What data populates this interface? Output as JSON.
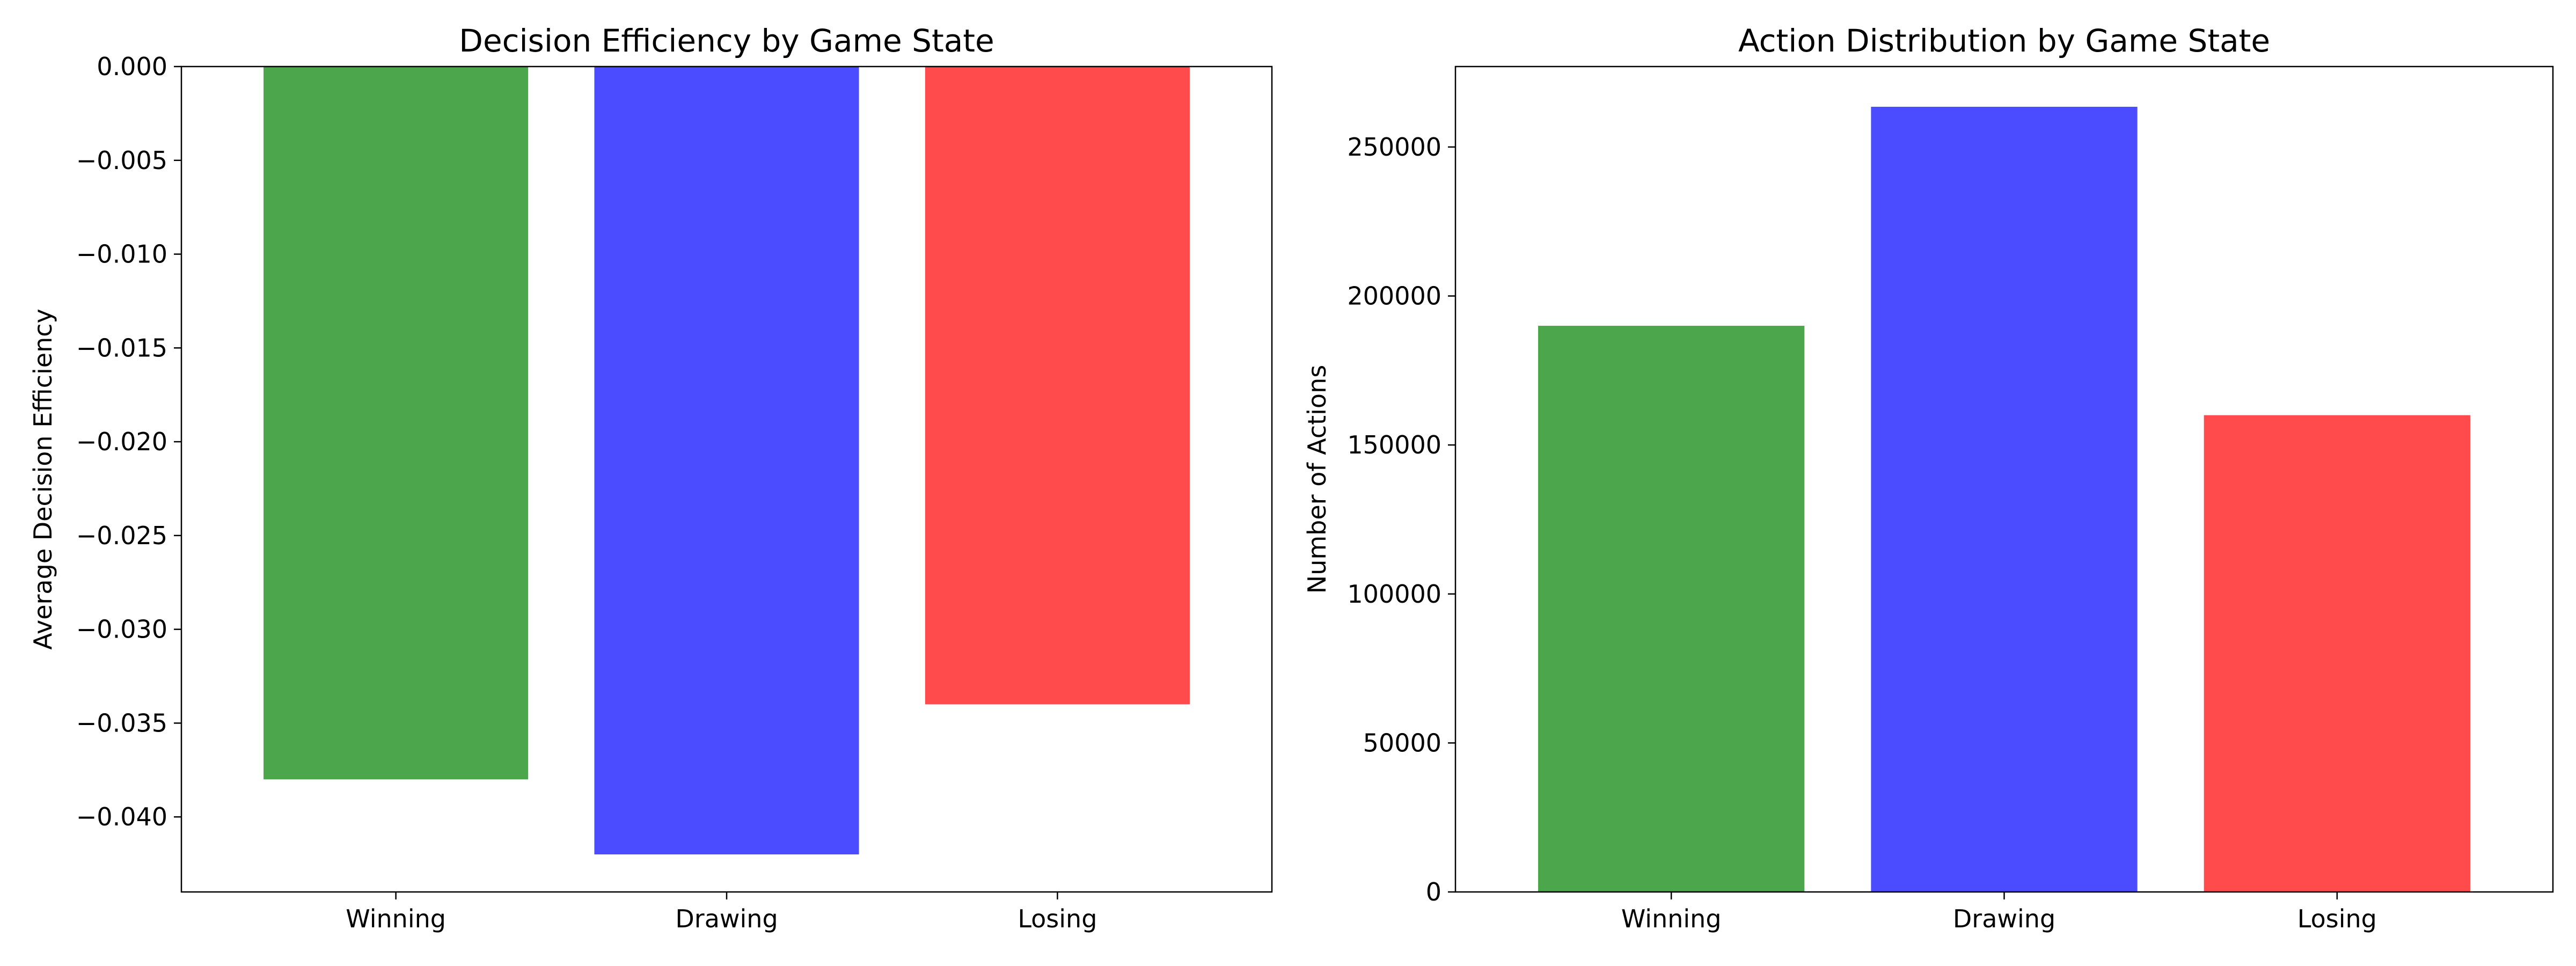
{
  "chart_data": [
    {
      "type": "bar",
      "title": "Decision Efficiency by Game State",
      "xlabel": "",
      "ylabel": "Average Decision Efficiency",
      "categories": [
        "Winning",
        "Drawing",
        "Losing"
      ],
      "values": [
        -0.038,
        -0.042,
        -0.034
      ],
      "colors": [
        "#4ca64c",
        "#4b4bff",
        "#ff4b4b"
      ],
      "ylim": [
        -0.044,
        0.0
      ],
      "yticks": [
        0.0,
        -0.005,
        -0.01,
        -0.015,
        -0.02,
        -0.025,
        -0.03,
        -0.035,
        -0.04
      ],
      "ytick_labels": [
        "0.000",
        "−0.005",
        "−0.010",
        "−0.015",
        "−0.020",
        "−0.025",
        "−0.030",
        "−0.035",
        "−0.040"
      ],
      "grid": false,
      "legend": "none"
    },
    {
      "type": "bar",
      "title": "Action Distribution by Game State",
      "xlabel": "",
      "ylabel": "Number of Actions",
      "categories": [
        "Winning",
        "Drawing",
        "Losing"
      ],
      "values": [
        190000,
        263500,
        160000
      ],
      "colors": [
        "#4ca64c",
        "#4b4bff",
        "#ff4b4b"
      ],
      "ylim": [
        0,
        277000
      ],
      "yticks": [
        0,
        50000,
        100000,
        150000,
        200000,
        250000
      ],
      "ytick_labels": [
        "0",
        "50000",
        "100000",
        "150000",
        "200000",
        "250000"
      ],
      "grid": false,
      "legend": "none"
    }
  ]
}
